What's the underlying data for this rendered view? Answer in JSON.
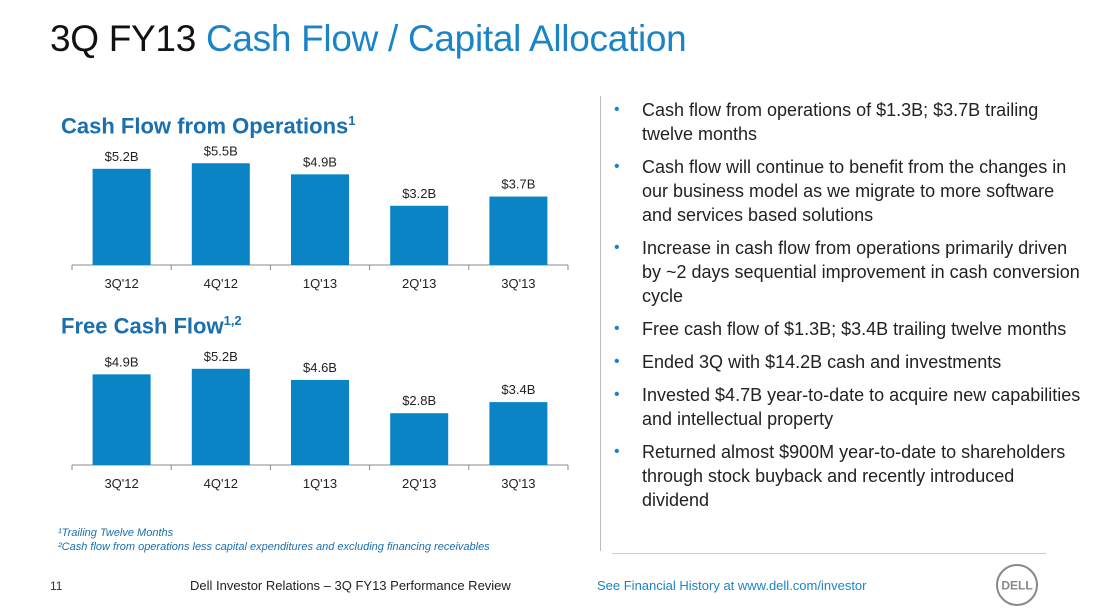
{
  "title": {
    "part1": "3Q FY13",
    "part2": "Cash Flow / Capital Allocation"
  },
  "colors": {
    "accent": "#1a84c7",
    "bar": "#0b84c6",
    "heading": "#1a6faf"
  },
  "chart_data": [
    {
      "type": "bar",
      "title": "Cash Flow from Operations",
      "title_sup": "1",
      "categories": [
        "3Q'12",
        "4Q'12",
        "1Q'13",
        "2Q'13",
        "3Q'13"
      ],
      "values": [
        5.2,
        5.5,
        4.9,
        3.2,
        3.7
      ],
      "labels": [
        "$5.2B",
        "$5.5B",
        "$4.9B",
        "$3.2B",
        "$3.7B"
      ],
      "unit": "$B",
      "xlabel": "",
      "ylabel": "",
      "ylim": [
        0,
        6
      ]
    },
    {
      "type": "bar",
      "title": "Free Cash Flow",
      "title_sup": "1,2",
      "categories": [
        "3Q'12",
        "4Q'12",
        "1Q'13",
        "2Q'13",
        "3Q'13"
      ],
      "values": [
        4.9,
        5.2,
        4.6,
        2.8,
        3.4
      ],
      "labels": [
        "$4.9B",
        "$5.2B",
        "$4.6B",
        "$2.8B",
        "$3.4B"
      ],
      "unit": "$B",
      "xlabel": "",
      "ylabel": "",
      "ylim": [
        0,
        6
      ]
    }
  ],
  "bullets": [
    "Cash flow from operations of $1.3B; $3.7B trailing twelve months",
    "Cash flow will continue to benefit from the changes in our business model as we migrate to more software and services based solutions",
    "Increase in cash flow from operations primarily driven by ~2 days sequential improvement in cash conversion cycle",
    "Free cash flow of $1.3B; $3.4B trailing twelve months",
    "Ended 3Q with $14.2B cash and investments",
    "Invested $4.7B year-to-date to acquire new capabilities and intellectual property",
    "Returned almost $900M year-to-date to shareholders through stock buyback and recently introduced dividend"
  ],
  "footnotes": [
    "¹Trailing Twelve Months",
    "²Cash flow from operations less capital expenditures and excluding financing receivables"
  ],
  "footer": {
    "page_number": "11",
    "left_text": "Dell Investor Relations – 3Q FY13 Performance Review",
    "right_text": "See Financial History at www.dell.com/investor",
    "logo_text": "DELL"
  }
}
